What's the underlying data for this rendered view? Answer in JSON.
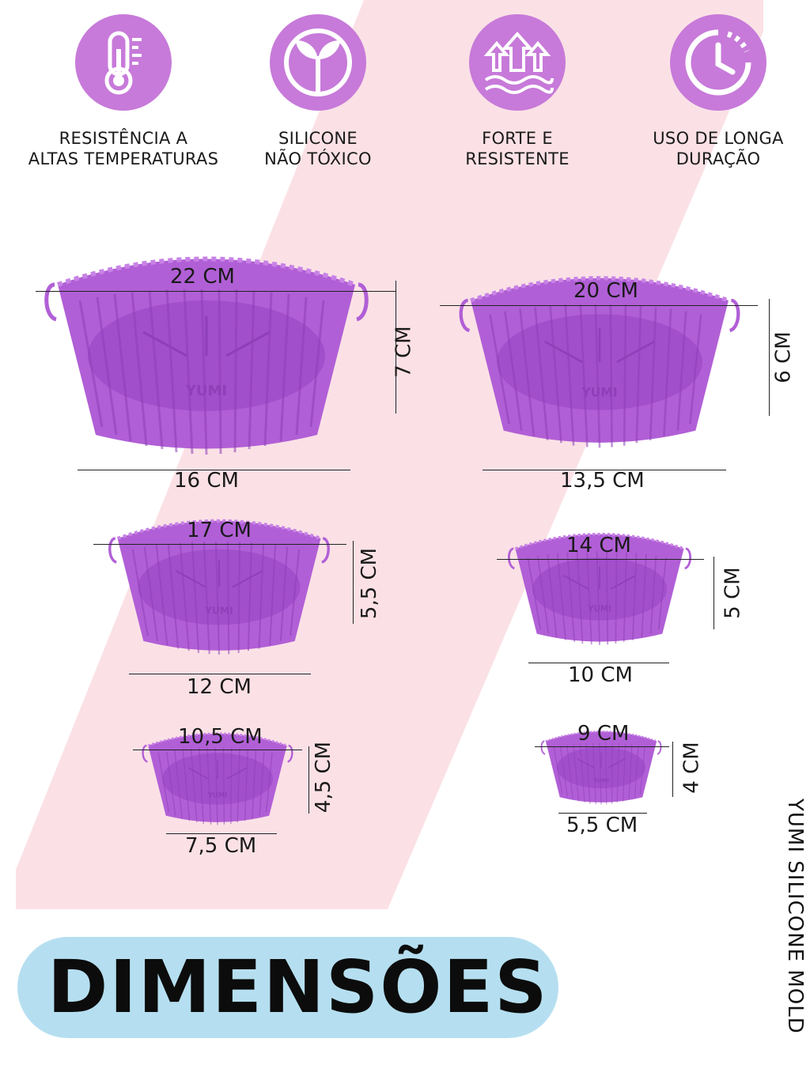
{
  "features": [
    {
      "icon": "thermometer-icon",
      "line1": "RESISTÊNCIA A",
      "line2": "ALTAS TEMPERATURAS"
    },
    {
      "icon": "leaf-icon",
      "line1": "SILICONE",
      "line2": "NÃO TÓXICO"
    },
    {
      "icon": "arrows-up-icon",
      "line1": "FORTE E",
      "line2": "RESISTENTE"
    },
    {
      "icon": "clock-icon",
      "line1": "USO DE LONGA",
      "line2": "DURAÇÃO"
    }
  ],
  "molds": [
    {
      "diameter": "22 CM",
      "base": "16 CM",
      "height": "7 CM",
      "logo": "YUMI"
    },
    {
      "diameter": "20 CM",
      "base": "13,5 CM",
      "height": "6 CM",
      "logo": "YUMI"
    },
    {
      "diameter": "17 CM",
      "base": "12 CM",
      "height": "5,5 CM",
      "logo": "YUMI"
    },
    {
      "diameter": "14 CM",
      "base": "10 CM",
      "height": "5 CM",
      "logo": "YUMI"
    },
    {
      "diameter": "10,5 CM",
      "base": "7,5 CM",
      "height": "4,5 CM",
      "logo": "YUMI"
    },
    {
      "diameter": "9 CM",
      "base": "5,5 CM",
      "height": "4 CM",
      "logo": "YUMI"
    }
  ],
  "title": "DIMENSÕES",
  "brand": "YUMI SILICONE MOLD",
  "colors": {
    "icon_bg": "#c77ad9",
    "mold": "#b15fd6",
    "mold_dark": "#9a48c2",
    "band": "#fbe1e6",
    "pill": "#b5dff0"
  }
}
